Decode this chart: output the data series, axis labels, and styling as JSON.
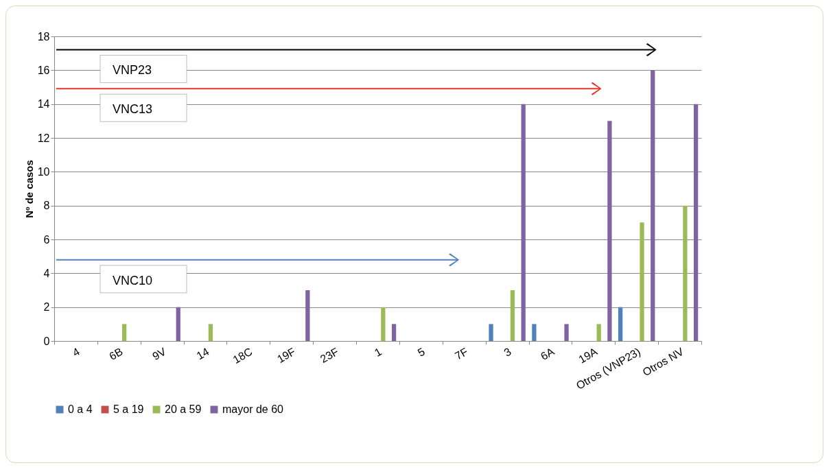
{
  "chart_data": {
    "type": "bar",
    "ylabel": "Nº de casos",
    "categories": [
      "4",
      "6B",
      "9V",
      "14",
      "18C",
      "19F",
      "23F",
      "1",
      "5",
      "7F",
      "3",
      "6A",
      "19A",
      "Otros (VNP23)",
      "Otros NV"
    ],
    "series": [
      {
        "name": "0 a 4",
        "color": "#4f81bd",
        "values": [
          0,
          0,
          0,
          0,
          0,
          0,
          0,
          0,
          0,
          0,
          1,
          1,
          0,
          2,
          0
        ]
      },
      {
        "name": "5 a 19",
        "color": "#c0504d",
        "values": [
          0,
          0,
          0,
          0,
          0,
          0,
          0,
          0,
          0,
          0,
          0,
          0,
          0,
          0,
          0
        ]
      },
      {
        "name": "20 a 59",
        "color": "#9bbb59",
        "values": [
          0,
          1,
          0,
          1,
          0,
          0,
          0,
          2,
          0,
          0,
          3,
          0,
          1,
          7,
          8
        ]
      },
      {
        "name": "mayor de 60",
        "color": "#8064a2",
        "values": [
          0,
          0,
          2,
          0,
          0,
          3,
          0,
          1,
          0,
          0,
          14,
          1,
          13,
          16,
          14
        ]
      }
    ],
    "ylim": [
      0,
      18
    ],
    "yticks": [
      0,
      2,
      4,
      6,
      8,
      10,
      12,
      14,
      16,
      18
    ],
    "grid": "y",
    "legend": "bottom",
    "annotations": [
      "VNP23",
      "VNC13",
      "VNC10"
    ]
  }
}
